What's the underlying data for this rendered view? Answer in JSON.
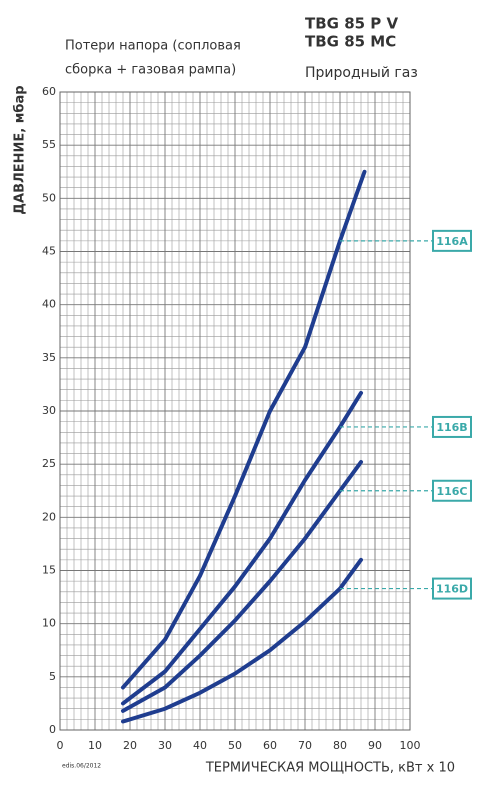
{
  "chart_data": {
    "type": "line",
    "title": [
      "TBG 85 P  V",
      "TBG 85 MC"
    ],
    "subtitle": [
      "Потери напора (сопловая",
      "сборка + газовая рампа)"
    ],
    "fuel": "Природный газ",
    "y_label": "ДАВЛЕНИЕ, мбар",
    "x_label": "ТЕРМИЧЕСКАЯ МОЩНОСТЬ, кВт x 10",
    "footnote": "edis.06/2012",
    "xlim": [
      0,
      100
    ],
    "xticks": [
      0,
      10,
      20,
      30,
      40,
      50,
      60,
      70,
      80,
      90,
      100
    ],
    "ylim": [
      0,
      60
    ],
    "yticks": [
      0,
      5,
      10,
      15,
      20,
      25,
      30,
      35,
      40,
      45,
      50,
      55,
      60
    ],
    "grid": true,
    "label_color": "#3aa9a9",
    "series": [
      {
        "name": "116A",
        "color": "#1f3d8f",
        "x": [
          18,
          30,
          40,
          50,
          60,
          70,
          80,
          87
        ],
        "values": [
          4,
          8.5,
          14.5,
          22,
          30,
          36,
          46,
          52.5
        ]
      },
      {
        "name": "116B",
        "color": "#1f3d8f",
        "x": [
          18,
          30,
          40,
          50,
          60,
          70,
          80,
          86
        ],
        "values": [
          2.5,
          5.5,
          9.5,
          13.5,
          18,
          23.5,
          28.5,
          31.7
        ]
      },
      {
        "name": "116C",
        "color": "#1f3d8f",
        "x": [
          18,
          30,
          40,
          50,
          60,
          70,
          80,
          86
        ],
        "values": [
          1.8,
          4,
          7,
          10.3,
          14,
          18,
          22.5,
          25.2
        ]
      },
      {
        "name": "116D",
        "color": "#1f3d8f",
        "x": [
          18,
          30,
          40,
          50,
          60,
          70,
          80,
          86
        ],
        "values": [
          0.8,
          2,
          3.5,
          5.3,
          7.5,
          10.2,
          13.3,
          16
        ]
      }
    ]
  }
}
